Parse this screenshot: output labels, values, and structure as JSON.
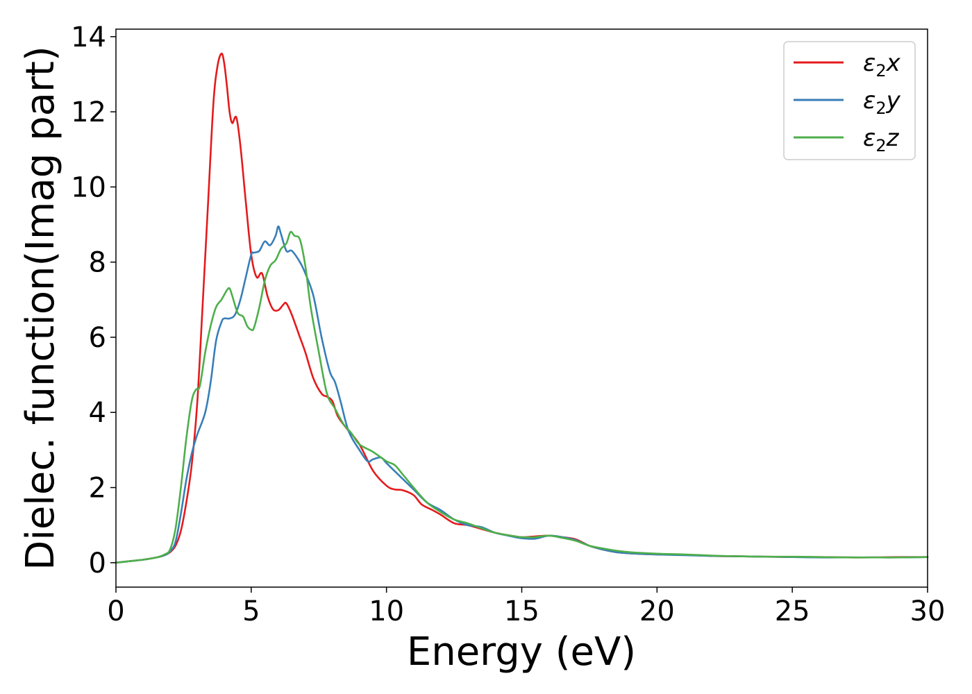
{
  "chart_data": {
    "type": "line",
    "xlabel": "Energy (eV)",
    "ylabel": "Dielec. function(Imag part)",
    "xlim": [
      0,
      30
    ],
    "ylim": [
      -0.65,
      14.2
    ],
    "xticks": [
      0,
      5,
      10,
      15,
      20,
      25,
      30
    ],
    "yticks": [
      0,
      2,
      4,
      6,
      8,
      10,
      12,
      14
    ],
    "grid": false,
    "legend": "top-right",
    "series": [
      {
        "name": "ε₂x",
        "legend_base": "ε",
        "legend_sub": "2",
        "legend_suffix": "x",
        "color": "#e41a1c",
        "x": [
          0,
          0.5,
          1,
          1.5,
          1.8,
          2.0,
          2.2,
          2.4,
          2.6,
          2.8,
          3.0,
          3.2,
          3.4,
          3.6,
          3.75,
          3.9,
          4.0,
          4.1,
          4.2,
          4.3,
          4.45,
          4.6,
          4.8,
          5.0,
          5.2,
          5.4,
          5.6,
          5.8,
          6.0,
          6.2,
          6.3,
          6.5,
          6.8,
          7.0,
          7.3,
          7.6,
          7.8,
          8.0,
          8.2,
          8.5,
          9.0,
          9.5,
          10.0,
          10.3,
          10.6,
          11.0,
          11.3,
          11.7,
          12.0,
          12.5,
          13.0,
          13.5,
          14.0,
          14.5,
          15.0,
          15.5,
          16.0,
          16.5,
          17.0,
          17.5,
          18.0,
          18.5,
          19.0,
          20.0,
          21.0,
          22.0,
          23.0,
          24.0,
          25.0,
          26.0,
          27.0,
          28.0,
          29.0,
          30.0
        ],
        "y": [
          0.0,
          0.04,
          0.08,
          0.14,
          0.2,
          0.28,
          0.45,
          0.85,
          1.6,
          2.6,
          4.2,
          6.8,
          9.5,
          12.2,
          13.2,
          13.55,
          13.3,
          12.7,
          12.0,
          11.7,
          11.85,
          11.1,
          9.6,
          8.2,
          7.6,
          7.7,
          7.1,
          6.75,
          6.72,
          6.88,
          6.9,
          6.6,
          6.0,
          5.6,
          4.9,
          4.5,
          4.42,
          4.3,
          3.9,
          3.6,
          3.15,
          2.45,
          2.05,
          1.95,
          1.93,
          1.8,
          1.55,
          1.4,
          1.28,
          1.05,
          1.0,
          0.9,
          0.8,
          0.73,
          0.68,
          0.7,
          0.72,
          0.68,
          0.62,
          0.45,
          0.35,
          0.28,
          0.25,
          0.22,
          0.21,
          0.18,
          0.17,
          0.16,
          0.15,
          0.15,
          0.14,
          0.14,
          0.15,
          0.15
        ]
      },
      {
        "name": "ε₂y",
        "legend_base": "ε",
        "legend_sub": "2",
        "legend_suffix": "y",
        "color": "#377eb8",
        "x": [
          0,
          0.5,
          1,
          1.5,
          1.8,
          2.0,
          2.2,
          2.4,
          2.6,
          2.8,
          3.0,
          3.3,
          3.5,
          3.7,
          3.9,
          4.0,
          4.2,
          4.4,
          4.6,
          4.8,
          5.0,
          5.1,
          5.3,
          5.5,
          5.7,
          5.9,
          6.0,
          6.1,
          6.3,
          6.5,
          6.8,
          7.0,
          7.3,
          7.6,
          7.9,
          8.1,
          8.3,
          8.6,
          9.0,
          9.3,
          9.5,
          9.8,
          10.0,
          10.5,
          11.0,
          11.5,
          12.0,
          12.5,
          13.0,
          13.5,
          14.0,
          14.5,
          15.0,
          15.5,
          16.0,
          16.5,
          17.0,
          17.5,
          18.0,
          18.5,
          19.0,
          20.0,
          21.0,
          22.0,
          23.0,
          24.0,
          25.0,
          26.0,
          27.0,
          28.0,
          29.0,
          30.0
        ],
        "y": [
          0.0,
          0.04,
          0.08,
          0.14,
          0.2,
          0.3,
          0.55,
          1.3,
          2.2,
          2.9,
          3.4,
          4.0,
          4.8,
          5.9,
          6.4,
          6.5,
          6.5,
          6.6,
          7.0,
          7.6,
          8.2,
          8.25,
          8.3,
          8.55,
          8.45,
          8.7,
          8.95,
          8.75,
          8.3,
          8.3,
          8.0,
          7.7,
          7.1,
          6.0,
          5.1,
          4.8,
          4.3,
          3.5,
          3.0,
          2.7,
          2.75,
          2.8,
          2.65,
          2.3,
          1.95,
          1.6,
          1.4,
          1.15,
          1.0,
          0.95,
          0.8,
          0.72,
          0.65,
          0.64,
          0.72,
          0.68,
          0.6,
          0.45,
          0.35,
          0.28,
          0.25,
          0.22,
          0.2,
          0.18,
          0.17,
          0.16,
          0.15,
          0.14,
          0.14,
          0.14,
          0.14,
          0.15
        ]
      },
      {
        "name": "ε₂z",
        "legend_base": "ε",
        "legend_sub": "2",
        "legend_suffix": "z",
        "color": "#4daf4a",
        "x": [
          0,
          0.5,
          1,
          1.5,
          1.8,
          2.0,
          2.2,
          2.4,
          2.6,
          2.8,
          2.95,
          3.1,
          3.3,
          3.5,
          3.7,
          3.9,
          4.1,
          4.2,
          4.3,
          4.5,
          4.7,
          4.85,
          5.0,
          5.1,
          5.3,
          5.5,
          5.7,
          5.9,
          6.1,
          6.3,
          6.45,
          6.6,
          6.8,
          7.0,
          7.2,
          7.5,
          7.8,
          8.1,
          8.4,
          8.7,
          9.0,
          9.5,
          10.0,
          10.3,
          10.6,
          11.0,
          11.5,
          12.0,
          12.5,
          13.0,
          13.5,
          14.0,
          14.5,
          15.0,
          15.5,
          16.0,
          16.5,
          17.0,
          17.5,
          18.0,
          18.5,
          19.0,
          20.0,
          21.0,
          22.0,
          23.0,
          24.0,
          25.0,
          26.0,
          27.0,
          28.0,
          29.0,
          30.0
        ],
        "y": [
          0.0,
          0.04,
          0.08,
          0.14,
          0.22,
          0.35,
          0.9,
          2.0,
          3.3,
          4.3,
          4.6,
          4.7,
          5.6,
          6.3,
          6.8,
          7.0,
          7.25,
          7.3,
          7.1,
          6.65,
          6.55,
          6.3,
          6.2,
          6.25,
          6.8,
          7.5,
          7.9,
          8.05,
          8.35,
          8.5,
          8.8,
          8.7,
          8.6,
          7.9,
          6.8,
          5.6,
          4.5,
          4.1,
          3.7,
          3.45,
          3.15,
          2.95,
          2.7,
          2.6,
          2.35,
          2.0,
          1.6,
          1.35,
          1.15,
          1.05,
          0.92,
          0.8,
          0.73,
          0.68,
          0.68,
          0.72,
          0.66,
          0.58,
          0.45,
          0.38,
          0.32,
          0.28,
          0.24,
          0.22,
          0.19,
          0.17,
          0.16,
          0.16,
          0.15,
          0.14,
          0.14,
          0.14,
          0.15
        ]
      }
    ]
  }
}
